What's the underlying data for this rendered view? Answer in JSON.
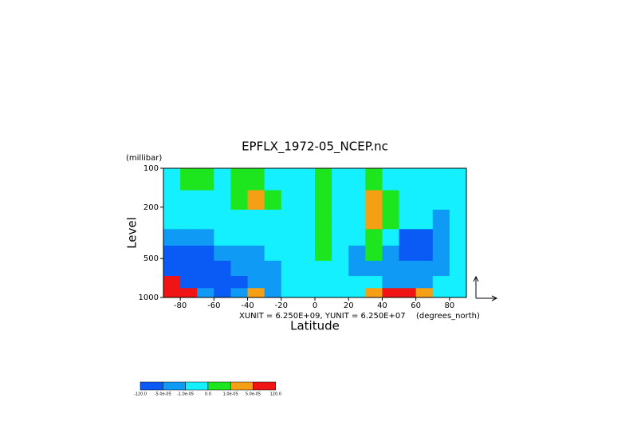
{
  "chart_data": {
    "type": "contour",
    "title": "EPFLX_1972-05_NCEP.nc",
    "y_unit": "(millibar)",
    "ylabel": "Level",
    "xlabel": "Latitude",
    "x_unit": "(degrees_north)",
    "vector_note": "XUNIT = 6.250E+09, YUNIT = 6.250E+07",
    "xlim": [
      -90,
      90
    ],
    "xticks": [
      -80,
      -60,
      -40,
      -20,
      0,
      20,
      40,
      60,
      80
    ],
    "ylim": [
      100,
      1000
    ],
    "yticks": [
      100,
      200,
      500,
      1000
    ],
    "ylog": true,
    "yreverse": true,
    "x": [
      -85,
      -75,
      -65,
      -55,
      -45,
      -35,
      -25,
      -15,
      -5,
      5,
      15,
      25,
      35,
      45,
      55,
      65,
      75,
      85
    ],
    "y": [
      125,
      175,
      250,
      350,
      450,
      600,
      775,
      925
    ],
    "z": [
      [
        -5e-06,
        5e-06,
        5e-06,
        -5e-06,
        5e-06,
        5e-06,
        -5e-06,
        -5e-06,
        -5e-06,
        5e-06,
        -5e-06,
        -5e-06,
        5e-06,
        -5e-06,
        -5e-06,
        -5e-06,
        -5e-06,
        -5e-06
      ],
      [
        -5e-06,
        -5e-06,
        -5e-06,
        -5e-06,
        5e-06,
        3e-05,
        5e-06,
        -5e-06,
        -5e-06,
        5e-06,
        -5e-06,
        -5e-06,
        3e-05,
        5e-06,
        -5e-06,
        -5e-06,
        -5e-06,
        -5e-06
      ],
      [
        -5e-06,
        -5e-06,
        -5e-06,
        -5e-06,
        -5e-06,
        -5e-06,
        -5e-06,
        -5e-06,
        -5e-06,
        5e-06,
        -5e-06,
        -5e-06,
        3e-05,
        5e-06,
        -5e-06,
        -5e-06,
        -3e-05,
        -5e-06
      ],
      [
        -3e-05,
        -3e-05,
        -3e-05,
        -5e-06,
        -5e-06,
        -5e-06,
        -5e-06,
        -5e-06,
        -5e-06,
        5e-06,
        -5e-06,
        -5e-06,
        5e-06,
        -5e-06,
        -0.0001,
        -0.0001,
        -3e-05,
        -5e-06
      ],
      [
        -0.0001,
        -0.0001,
        -0.0001,
        -3e-05,
        -3e-05,
        -3e-05,
        -5e-06,
        -5e-06,
        -5e-06,
        5e-06,
        -5e-06,
        -3e-05,
        5e-06,
        -3e-05,
        -0.0001,
        -0.0001,
        -3e-05,
        -5e-06
      ],
      [
        -0.0001,
        -0.0001,
        -0.0001,
        -0.0001,
        -3e-05,
        -3e-05,
        -3e-05,
        -5e-06,
        -5e-06,
        -5e-06,
        -5e-06,
        -3e-05,
        -3e-05,
        -3e-05,
        -3e-05,
        -3e-05,
        -3e-05,
        -5e-06
      ],
      [
        0.0001,
        -0.0001,
        -0.0001,
        -0.0001,
        -0.0001,
        -3e-05,
        -3e-05,
        -5e-06,
        -5e-06,
        -5e-06,
        -5e-06,
        -5e-06,
        -5e-06,
        -3e-05,
        -3e-05,
        -3e-05,
        -5e-06,
        -5e-06
      ],
      [
        0.0001,
        0.0001,
        -3e-05,
        -0.0001,
        -3e-05,
        3e-05,
        -3e-05,
        -5e-06,
        -5e-06,
        -5e-06,
        -5e-06,
        -5e-06,
        3e-05,
        0.0001,
        0.0001,
        3e-05,
        -5e-06,
        -5e-06
      ]
    ],
    "levels": [
      {
        "value": -120,
        "label": "-120.0"
      },
      {
        "value": -5e-05,
        "label": "-5.0e-05"
      },
      {
        "value": -1e-05,
        "label": "-1.0e-05"
      },
      {
        "value": 0,
        "label": "0.0"
      },
      {
        "value": 1e-05,
        "label": "1.0e-05"
      },
      {
        "value": 5e-05,
        "label": "5.0e-05"
      },
      {
        "value": 120,
        "label": "120.0"
      }
    ],
    "colors": [
      "#0a5af5",
      "#0f9bf5",
      "#14f0ff",
      "#1ee61e",
      "#f5a014",
      "#f01414"
    ]
  }
}
